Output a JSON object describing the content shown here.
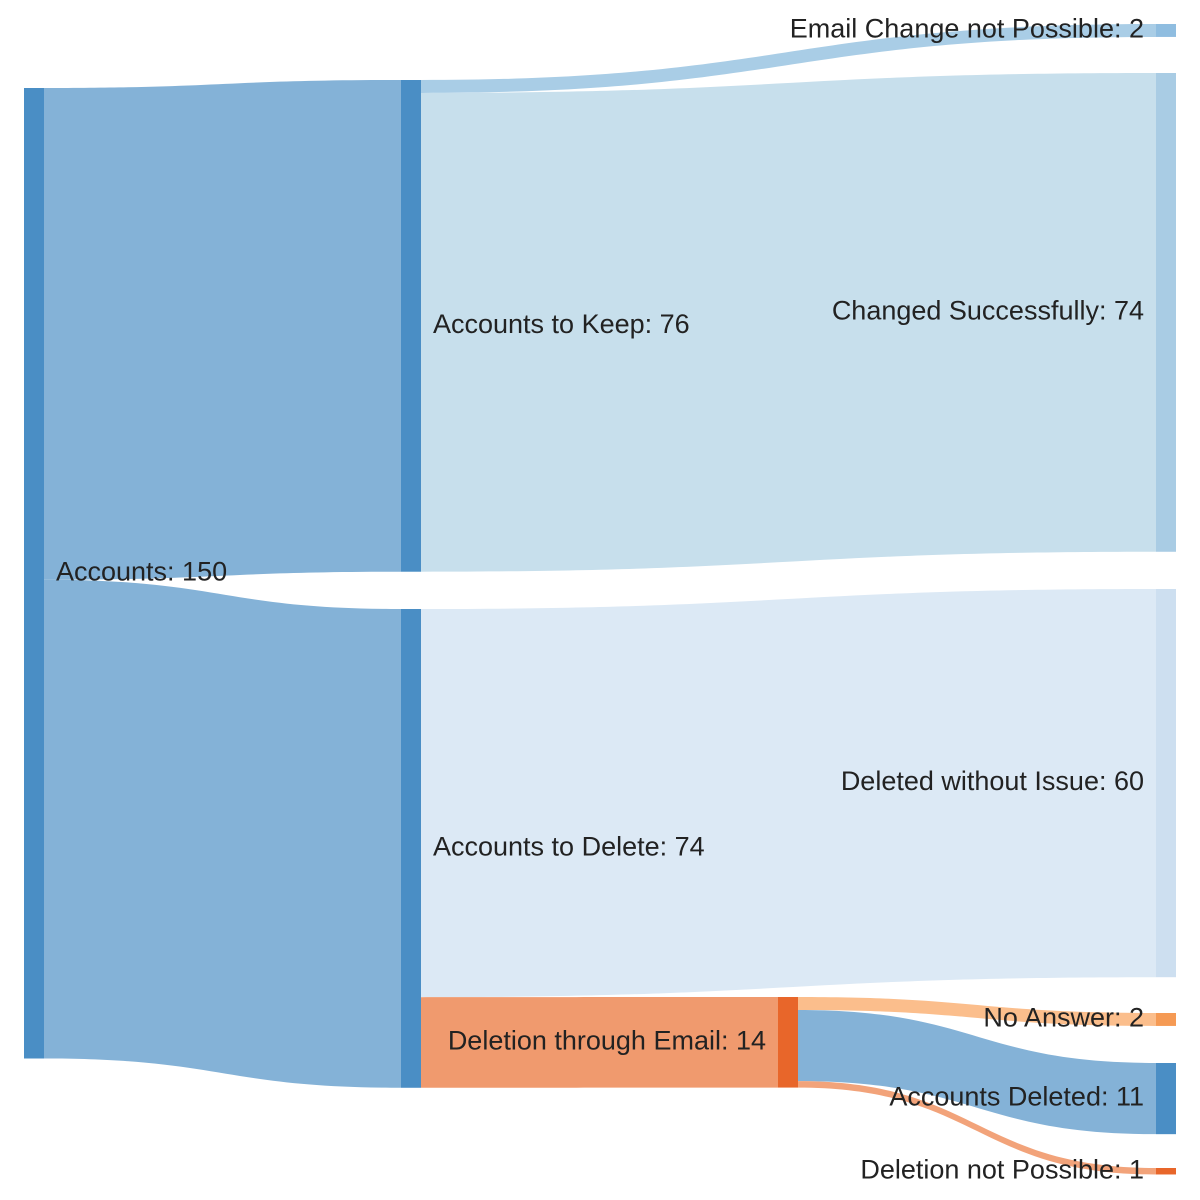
{
  "diagram": {
    "type": "sankey",
    "nodes": [
      {
        "id": "accounts",
        "label": "Accounts: 150",
        "color": "#4a8ec5"
      },
      {
        "id": "keep",
        "label": "Accounts to Keep: 76",
        "color": "#4a8ec5"
      },
      {
        "id": "delete",
        "label": "Accounts to Delete: 74",
        "color": "#4a8ec5"
      },
      {
        "id": "email_change_not_possible",
        "label": "Email Change not Possible: 2",
        "color": "#8fbde0"
      },
      {
        "id": "changed_successfully",
        "label": "Changed Successfully: 74",
        "color": "#a9cce4"
      },
      {
        "id": "deleted_without_issue",
        "label": "Deleted without Issue: 60",
        "color": "#cddff0"
      },
      {
        "id": "deletion_email",
        "label": "Deletion through Email: 14",
        "color": "#e8662a"
      },
      {
        "id": "no_answer",
        "label": "No Answer: 2",
        "color": "#f59a54"
      },
      {
        "id": "accounts_deleted",
        "label": "Accounts Deleted: 11",
        "color": "#4a8ec5"
      },
      {
        "id": "deletion_not_possible",
        "label": "Deletion not Possible: 1",
        "color": "#e8662a"
      }
    ],
    "links": [
      {
        "source": "accounts",
        "target": "keep",
        "value": 76,
        "color": "#84b2d7"
      },
      {
        "source": "accounts",
        "target": "delete",
        "value": 74,
        "color": "#84b2d7"
      },
      {
        "source": "keep",
        "target": "email_change_not_possible",
        "value": 2,
        "color": "#a9cde6"
      },
      {
        "source": "keep",
        "target": "changed_successfully",
        "value": 74,
        "color": "#c7dfec"
      },
      {
        "source": "delete",
        "target": "deleted_without_issue",
        "value": 60,
        "color": "#dce9f5"
      },
      {
        "source": "delete",
        "target": "deletion_email",
        "value": 14,
        "color": "#f09a6e"
      },
      {
        "source": "deletion_email",
        "target": "no_answer",
        "value": 2,
        "color": "#fbbe8c"
      },
      {
        "source": "deletion_email",
        "target": "accounts_deleted",
        "value": 11,
        "color": "#84b2d7"
      },
      {
        "source": "deletion_email",
        "target": "deletion_not_possible",
        "value": 1,
        "color": "#f2a37a"
      }
    ]
  }
}
